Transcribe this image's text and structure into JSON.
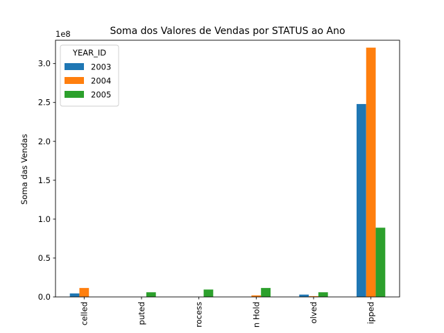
{
  "chart_data": {
    "type": "bar",
    "title": "Soma dos Valores de Vendas por STATUS ao Ano",
    "xlabel": "",
    "ylabel": "Soma das Vendas",
    "y_offset_label": "1e8",
    "ylim": [
      0,
      330000000
    ],
    "y_ticks": [
      0,
      50000000,
      100000000,
      150000000,
      200000000,
      250000000,
      300000000
    ],
    "y_tick_labels": [
      "0.0",
      "0.5",
      "1.0",
      "1.5",
      "2.0",
      "2.5",
      "3.0"
    ],
    "categories": [
      "Cancelled",
      "Disputed",
      "In Process",
      "On Hold",
      "Resolved",
      "Shipped"
    ],
    "category_labels_visible": [
      "celled",
      "puted",
      "rocess",
      "n Hold",
      "olved",
      "ipped"
    ],
    "legend": {
      "title": "YEAR_ID",
      "placement": "upper-left"
    },
    "grid": false,
    "series": [
      {
        "name": "2003",
        "color": "#1f77b4",
        "values": [
          4500000,
          0,
          0,
          0,
          3000000,
          248000000
        ]
      },
      {
        "name": "2004",
        "color": "#ff7f0e",
        "values": [
          11500000,
          0,
          0,
          2000000,
          1000000,
          320500000
        ]
      },
      {
        "name": "2005",
        "color": "#2ca02c",
        "values": [
          0,
          6000000,
          9500000,
          11500000,
          6000000,
          89000000
        ]
      }
    ]
  }
}
